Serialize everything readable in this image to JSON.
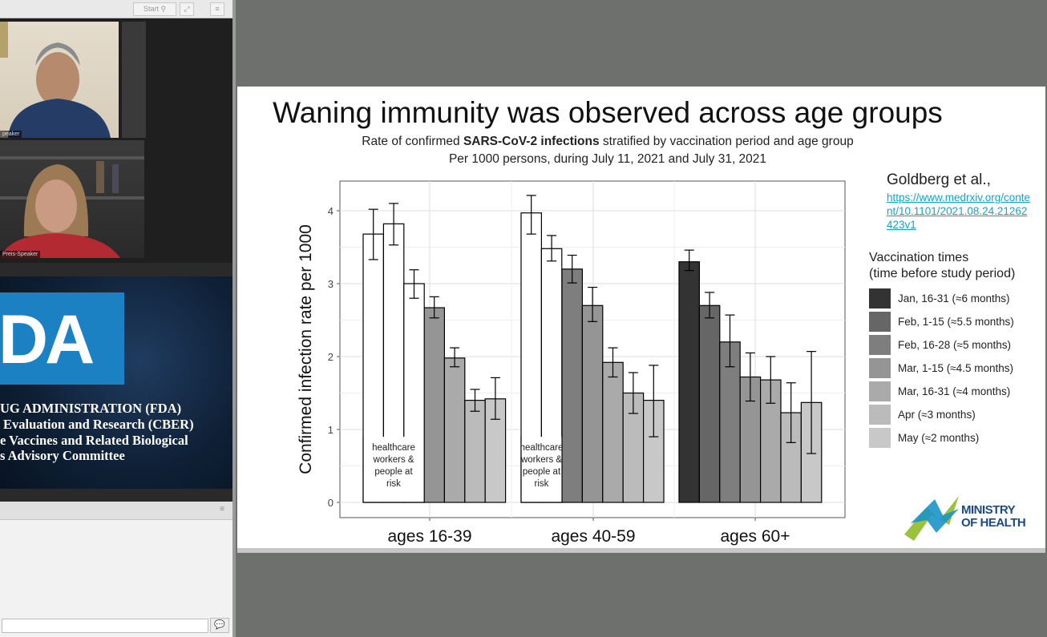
{
  "conference": {
    "toolbar": {
      "start_label": "Start"
    },
    "videos": [
      {
        "label": "peaker"
      },
      {
        "label": "Preis-Speaker"
      }
    ],
    "fda": {
      "logo_text": "DA",
      "lines": [
        "UG ADMINISTRATION (FDA)",
        "Evaluation and Research (CBER)",
        "e Vaccines and Related Biological",
        "s Advisory Committee"
      ]
    }
  },
  "slide": {
    "title": "Waning immunity was observed across age groups",
    "subtitle_pre": "Rate of confirmed ",
    "subtitle_bold": "SARS-CoV-2 infections",
    "subtitle_post": " stratified by vaccination period and age group",
    "subtitle2": "Per 1000 persons, during July 11, 2021 and July 31, 2021",
    "ref_author": "Goldberg et al.,",
    "ref_link": "https://www.medrxiv.org/content/10.1101/2021.08.24.21262423v1",
    "logo_text_1": "MINISTRY",
    "logo_text_2": "OF HEALTH"
  },
  "chart_data": {
    "type": "bar",
    "title": "",
    "xlabel": "",
    "ylabel": "Confirmed infection rate per 1000",
    "ylim": [
      0,
      4.2
    ],
    "y_ticks": [
      "0",
      "1",
      "2",
      "3",
      "4"
    ],
    "grid": true,
    "legend_position": "right",
    "legend_title": "Vaccination times",
    "legend_subtitle": "(time before study period)",
    "categories": [
      "ages 16-39",
      "ages 40-59",
      "ages 60+"
    ],
    "series": [
      {
        "name": "Jan, 16-31 (≈6 months)",
        "color": "#333333",
        "values": [
          null,
          null,
          3.3
        ],
        "error_low": [
          null,
          null,
          3.18
        ],
        "error_high": [
          null,
          null,
          3.46
        ]
      },
      {
        "name": "Feb, 1-15 (≈5.5 months)",
        "color": "#666666",
        "values": [
          null,
          null,
          2.7
        ],
        "error_low": [
          null,
          null,
          2.53
        ],
        "error_high": [
          null,
          null,
          2.88
        ]
      },
      {
        "name": "Feb, 16-28 (≈5 months)",
        "color": "#7e7e7e",
        "values": [
          null,
          3.2,
          2.2
        ],
        "error_low": [
          null,
          3.01,
          1.86
        ],
        "error_high": [
          null,
          3.39,
          2.57
        ]
      },
      {
        "name": "Mar, 1-15 (≈4.5 months)",
        "color": "#959595",
        "values": [
          2.67,
          2.7,
          1.72
        ],
        "error_low": [
          2.53,
          2.48,
          1.39
        ],
        "error_high": [
          2.82,
          2.95,
          2.05
        ]
      },
      {
        "name": "Mar, 16-31 (≈4 months)",
        "color": "#aaaaaa",
        "values": [
          1.98,
          1.92,
          1.68
        ],
        "error_low": [
          1.86,
          1.72,
          1.36
        ],
        "error_high": [
          2.12,
          2.12,
          2.0
        ]
      },
      {
        "name": "Apr (≈3 months)",
        "color": "#bbbbbb",
        "values": [
          1.4,
          1.5,
          1.23
        ],
        "error_low": [
          1.25,
          1.22,
          0.82
        ],
        "error_high": [
          1.55,
          1.78,
          1.64
        ]
      },
      {
        "name": "May (≈2 months)",
        "color": "#c8c8c8",
        "values": [
          1.42,
          1.4,
          1.37
        ],
        "error_low": [
          1.14,
          0.9,
          0.67
        ],
        "error_high": [
          1.71,
          1.88,
          2.07
        ]
      }
    ],
    "white_bars": {
      "annotation": "healthcare workers & people at risk",
      "annotation_lines": [
        "healthcare",
        "workers &",
        "people at",
        "risk"
      ],
      "groups": [
        {
          "category": "ages 16-39",
          "values": [
            3.68,
            3.82,
            3.0
          ],
          "error_low": [
            3.33,
            3.53,
            2.8
          ],
          "error_high": [
            4.02,
            4.1,
            3.19
          ]
        },
        {
          "category": "ages 40-59",
          "values": [
            3.97,
            3.48
          ],
          "error_low": [
            3.68,
            3.31
          ],
          "error_high": [
            4.21,
            3.66
          ]
        }
      ]
    }
  }
}
